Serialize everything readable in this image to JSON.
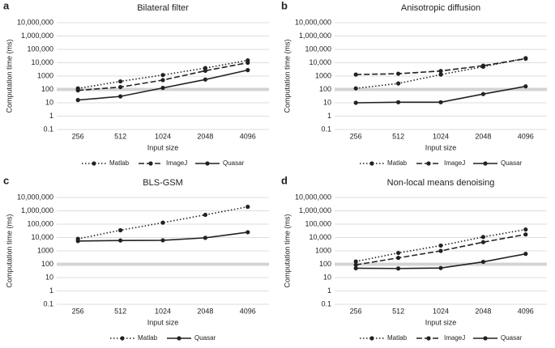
{
  "chart_data": [
    {
      "type": "line",
      "panel": "a",
      "title": "Bilateral filter",
      "x_label": "Input size",
      "y_label": "Computation time (ms)",
      "categories": [
        "256",
        "512",
        "1024",
        "2048",
        "4096"
      ],
      "log_y": true,
      "grid": true,
      "reference_y": 100,
      "ylim": [
        0.1,
        10000000
      ],
      "yticks": [
        0.1,
        1,
        10,
        100,
        1000,
        {
          "value": 10000,
          "label": "10,000"
        },
        {
          "value": 100000,
          "label": "100,000"
        },
        {
          "value": 1000000,
          "label": "1,000,000"
        },
        {
          "value": 10000000,
          "label": "10,000,000"
        }
      ],
      "series": [
        {
          "name": "Matlab",
          "color": "#222222",
          "linestyle": "dotted",
          "values": [
            120,
            400,
            1200,
            4000,
            15000
          ]
        },
        {
          "name": "ImageJ",
          "color": "#222222",
          "linestyle": "dashed",
          "values": [
            85,
            150,
            500,
            2500,
            10000
          ]
        },
        {
          "name": "Quasar",
          "color": "#222222",
          "linestyle": "solid",
          "values": [
            16,
            30,
            130,
            550,
            2800
          ]
        }
      ]
    },
    {
      "type": "line",
      "panel": "b",
      "title": "Anisotropic diffusion",
      "x_label": "Input size",
      "y_label": "Computation time (ms)",
      "categories": [
        "256",
        "512",
        "1024",
        "2048",
        "4096"
      ],
      "log_y": true,
      "grid": true,
      "reference_y": 100,
      "ylim": [
        0.1,
        10000000
      ],
      "yticks": [
        0.1,
        1,
        10,
        100,
        1000,
        {
          "value": 10000,
          "label": "10,000"
        },
        {
          "value": 100000,
          "label": "100,000"
        },
        {
          "value": 1000000,
          "label": "1,000,000"
        },
        {
          "value": 10000000,
          "label": "10,000,000"
        }
      ],
      "series": [
        {
          "name": "Matlab",
          "color": "#222222",
          "linestyle": "dotted",
          "values": [
            120,
            280,
            1300,
            5000,
            22000
          ]
        },
        {
          "name": "ImageJ",
          "color": "#222222",
          "linestyle": "dashed",
          "values": [
            1300,
            1500,
            2400,
            6000,
            20000
          ]
        },
        {
          "name": "Quasar",
          "color": "#222222",
          "linestyle": "solid",
          "values": [
            10,
            11,
            11,
            45,
            170
          ]
        }
      ]
    },
    {
      "type": "line",
      "panel": "c",
      "title": "BLS-GSM",
      "x_label": "Input size",
      "y_label": "Computation time (ms)",
      "categories": [
        "256",
        "512",
        "1024",
        "2048",
        "4096"
      ],
      "log_y": true,
      "grid": true,
      "reference_y": 100,
      "ylim": [
        0.1,
        10000000
      ],
      "yticks": [
        0.1,
        1,
        10,
        100,
        1000,
        {
          "value": 10000,
          "label": "10,000"
        },
        {
          "value": 100000,
          "label": "100,000"
        },
        {
          "value": 1000000,
          "label": "1,000,000"
        },
        {
          "value": 10000000,
          "label": "10,000,000"
        }
      ],
      "series": [
        {
          "name": "Matlab",
          "color": "#222222",
          "linestyle": "dotted",
          "values": [
            8000,
            35000,
            130000,
            500000,
            2000000
          ]
        },
        {
          "name": "Quasar",
          "color": "#222222",
          "linestyle": "solid",
          "values": [
            5500,
            6000,
            6200,
            9500,
            25000
          ]
        }
      ]
    },
    {
      "type": "line",
      "panel": "d",
      "title": "Non-local means denoising",
      "x_label": "Input size",
      "y_label": "Computation time (ms)",
      "categories": [
        "256",
        "512",
        "1024",
        "2048",
        "4096"
      ],
      "log_y": true,
      "grid": true,
      "reference_y": 100,
      "ylim": [
        0.1,
        10000000
      ],
      "yticks": [
        0.1,
        1,
        10,
        100,
        1000,
        {
          "value": 10000,
          "label": "10,000"
        },
        {
          "value": 100000,
          "label": "100,000"
        },
        {
          "value": 1000000,
          "label": "1,000,000"
        },
        {
          "value": 10000000,
          "label": "10,000,000"
        }
      ],
      "series": [
        {
          "name": "Matlab",
          "color": "#222222",
          "linestyle": "dotted",
          "values": [
            160,
            700,
            2500,
            11000,
            40000
          ]
        },
        {
          "name": "ImageJ",
          "color": "#222222",
          "linestyle": "dashed",
          "values": [
            90,
            300,
            1000,
            4500,
            17000
          ]
        },
        {
          "name": "Quasar",
          "color": "#222222",
          "linestyle": "solid",
          "values": [
            50,
            48,
            52,
            150,
            600
          ]
        }
      ]
    }
  ]
}
